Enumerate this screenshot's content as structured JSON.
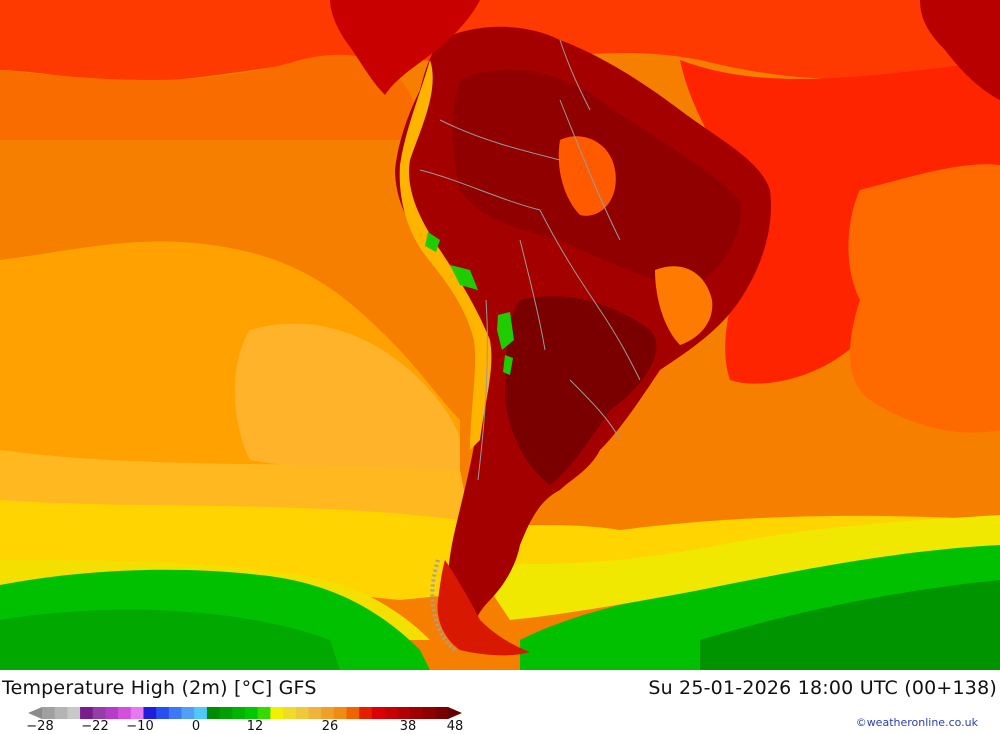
{
  "title": "Temperature High (2m) [°C] GFS",
  "valid_time": "Su 25-01-2026 18:00 UTC (00+138)",
  "credit": "©weatheronline.co.uk",
  "legend": {
    "ticks": [
      "-28",
      "-22",
      "-10",
      "0",
      "12",
      "26",
      "38",
      "48"
    ],
    "swatches": [
      "#8c8c8c",
      "#a0a0a0",
      "#b4b4b4",
      "#c8c8c8",
      "#781e8c",
      "#963ca8",
      "#b43cc8",
      "#d250dc",
      "#e678f0",
      "#1e1edc",
      "#2850f0",
      "#3c78f8",
      "#50a0f8",
      "#50c8f8",
      "#008c00",
      "#00a000",
      "#00b400",
      "#00c800",
      "#32dc00",
      "#f0f000",
      "#f0dc28",
      "#f0c83c",
      "#f0b43c",
      "#f0a028",
      "#f08c14",
      "#f06400",
      "#e61e00",
      "#dc0000",
      "#c80000",
      "#b40000",
      "#a00000",
      "#8c0000",
      "#780000",
      "#640000"
    ],
    "colors_used": {
      "ocean_warm": "#ff9a00",
      "ocean_hot": "#f04010",
      "land_hottest": "#8a0000",
      "cool_south": "#00c800",
      "mild": "#ffe000"
    }
  }
}
